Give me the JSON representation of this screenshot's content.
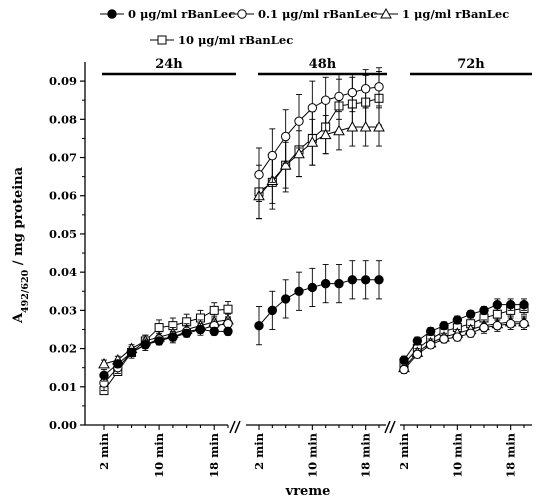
{
  "chart_data": {
    "type": "scatter",
    "ylabel_main": "A",
    "ylabel_sub": "492/620",
    "ylabel_rest": " / mg proteina",
    "xlabel": "vreme",
    "ylim": [
      0,
      0.095
    ],
    "yticks": [
      0.0,
      0.01,
      0.02,
      0.03,
      0.04,
      0.05,
      0.06,
      0.07,
      0.08,
      0.09
    ],
    "ytick_labels": [
      "0.00",
      "0.01",
      "0.02",
      "0.03",
      "0.04",
      "0.05",
      "0.06",
      "0.07",
      "0.08",
      "0.09"
    ],
    "legend": [
      {
        "label": "0 μg/ml rBanLec",
        "marker": "circle-filled"
      },
      {
        "label": "0.1 μg/ml rBanLec",
        "marker": "circle-open"
      },
      {
        "label": "1 μg/ml rBanLec",
        "marker": "triangle-open"
      },
      {
        "label": "10 μg/ml rBanLec",
        "marker": "square-open"
      }
    ],
    "periods": [
      {
        "label": "24h",
        "x_ticks": [
          "2 min",
          "10 min",
          "18 min"
        ],
        "x": [
          2,
          4,
          6,
          8,
          10,
          12,
          14,
          16,
          18,
          20
        ],
        "series": [
          {
            "values": [
              0.013,
              0.016,
              0.019,
              0.021,
              0.022,
              0.023,
              0.024,
              0.025,
              0.0245,
              0.0245
            ],
            "error": [
              0.0015,
              0.001,
              0.001,
              0.001,
              0.001,
              0.001,
              0.001,
              0.001,
              0.001,
              0.001
            ]
          },
          {
            "values": [
              0.011,
              0.015,
              0.019,
              0.021,
              0.0225,
              0.023,
              0.0245,
              0.025,
              0.026,
              0.0265
            ],
            "error": [
              0.002,
              0.0015,
              0.001,
              0.0015,
              0.0015,
              0.0015,
              0.0015,
              0.0015,
              0.0015,
              0.0015
            ]
          },
          {
            "values": [
              0.016,
              0.017,
              0.02,
              0.022,
              0.023,
              0.024,
              0.025,
              0.026,
              0.027,
              0.0275
            ],
            "error": [
              0.001,
              0.001,
              0.001,
              0.0015,
              0.0015,
              0.0015,
              0.0015,
              0.0015,
              0.0015,
              0.0015
            ]
          },
          {
            "values": [
              0.009,
              0.014,
              0.019,
              0.022,
              0.0255,
              0.026,
              0.027,
              0.028,
              0.03,
              0.0303
            ],
            "error": [
              0.001,
              0.001,
              0.0015,
              0.0015,
              0.002,
              0.002,
              0.002,
              0.002,
              0.002,
              0.002
            ]
          }
        ]
      },
      {
        "label": "48h",
        "x_ticks": [
          "2 min",
          "10 min",
          "18 min"
        ],
        "x": [
          2,
          4,
          6,
          8,
          10,
          12,
          14,
          16,
          18,
          20
        ],
        "series": [
          {
            "values": [
              0.026,
              0.03,
              0.033,
              0.035,
              0.036,
              0.037,
              0.037,
              0.038,
              0.038,
              0.038
            ],
            "error": [
              0.005,
              0.005,
              0.005,
              0.005,
              0.005,
              0.005,
              0.005,
              0.005,
              0.005,
              0.005
            ]
          },
          {
            "values": [
              0.0655,
              0.0705,
              0.0755,
              0.0795,
              0.083,
              0.085,
              0.086,
              0.087,
              0.088,
              0.0885
            ],
            "error": [
              0.007,
              0.007,
              0.007,
              0.007,
              0.007,
              0.006,
              0.006,
              0.005,
              0.005,
              0.005
            ]
          },
          {
            "values": [
              0.06,
              0.064,
              0.068,
              0.071,
              0.074,
              0.076,
              0.077,
              0.078,
              0.078,
              0.078
            ],
            "error": [
              0.006,
              0.006,
              0.006,
              0.006,
              0.006,
              0.005,
              0.005,
              0.005,
              0.005,
              0.005
            ]
          },
          {
            "values": [
              0.061,
              0.0635,
              0.068,
              0.072,
              0.075,
              0.078,
              0.0835,
              0.084,
              0.0845,
              0.0855
            ],
            "error": [
              0.007,
              0.007,
              0.007,
              0.007,
              0.007,
              0.007,
              0.007,
              0.007,
              0.007,
              0.007
            ]
          }
        ]
      },
      {
        "label": "72h",
        "x_ticks": [
          "2 min",
          "10 min",
          "18 min"
        ],
        "x": [
          2,
          4,
          6,
          8,
          10,
          12,
          14,
          16,
          18,
          20
        ],
        "series": [
          {
            "values": [
              0.017,
              0.022,
              0.0245,
              0.026,
              0.0275,
              0.029,
              0.03,
              0.0315,
              0.0315,
              0.0315
            ],
            "error": [
              0.001,
              0.001,
              0.001,
              0.001,
              0.001,
              0.001,
              0.001,
              0.0015,
              0.0015,
              0.0015
            ]
          },
          {
            "values": [
              0.0145,
              0.0185,
              0.021,
              0.0225,
              0.023,
              0.024,
              0.0255,
              0.026,
              0.0265,
              0.0265
            ],
            "error": [
              0.001,
              0.001,
              0.001,
              0.001,
              0.001,
              0.001,
              0.0015,
              0.0015,
              0.0015,
              0.0015
            ]
          },
          {
            "values": [
              0.015,
              0.019,
              0.0215,
              0.023,
              0.024,
              0.025,
              0.026,
              0.0265,
              0.027,
              0.027
            ],
            "error": [
              0.001,
              0.001,
              0.001,
              0.001,
              0.001,
              0.001,
              0.0015,
              0.0015,
              0.0015,
              0.0015
            ]
          },
          {
            "values": [
              0.016,
              0.02,
              0.0225,
              0.0245,
              0.0255,
              0.0265,
              0.028,
              0.029,
              0.03,
              0.0305
            ],
            "error": [
              0.001,
              0.001,
              0.001,
              0.001,
              0.001,
              0.0015,
              0.0015,
              0.0015,
              0.0015,
              0.0015
            ]
          }
        ]
      }
    ]
  }
}
